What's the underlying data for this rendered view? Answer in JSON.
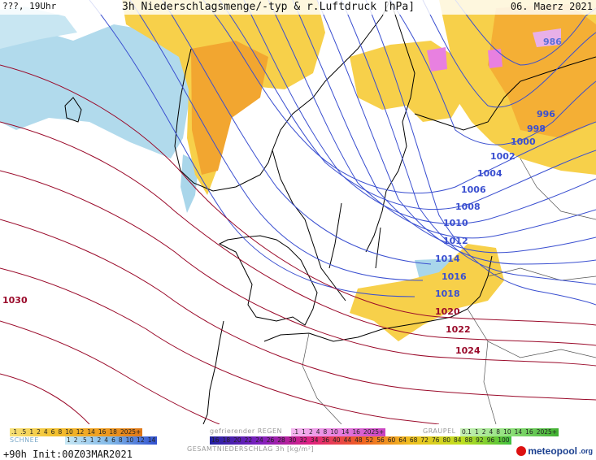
{
  "header": {
    "left": "???, 19Uhr",
    "title": "3h Niederschlagsmenge/-typ & r.Luftdruck [hPa]",
    "date": "06. Maerz 2021"
  },
  "isobars": [
    {
      "label": "986",
      "color": "#5b6fd6"
    },
    {
      "label": "996",
      "color": "#3a4fd0"
    },
    {
      "label": "998",
      "color": "#3a4fd0"
    },
    {
      "label": "1000",
      "color": "#3a4fd0"
    },
    {
      "label": "1002",
      "color": "#3a4fd0"
    },
    {
      "label": "1004",
      "color": "#3a4fd0"
    },
    {
      "label": "1006",
      "color": "#3a4fd0"
    },
    {
      "label": "1008",
      "color": "#3a4fd0"
    },
    {
      "label": "1010",
      "color": "#3a4fd0"
    },
    {
      "label": "1012",
      "color": "#3a4fd0"
    },
    {
      "label": "1014",
      "color": "#3a4fd0"
    },
    {
      "label": "1016",
      "color": "#3a4fd0"
    },
    {
      "label": "1018",
      "color": "#3a4fd0"
    },
    {
      "label": "1020",
      "color": "#9a0a2a"
    },
    {
      "label": "1022",
      "color": "#9a0a2a"
    },
    {
      "label": "1024",
      "color": "#9a0a2a"
    },
    {
      "label": "1030",
      "color": "#9a0a2a"
    }
  ],
  "legend": {
    "rain_scale": [
      ".1",
      ".5",
      "1",
      "2",
      "4",
      "6",
      "8",
      "10",
      "12",
      "14",
      "16",
      "18",
      "2025+"
    ],
    "rain_label": "",
    "frz_label": "gefrierender REGEN",
    "frz_scale": [
      ".1",
      "1",
      "2",
      "4",
      "8",
      "10",
      "14",
      "16",
      "2025+"
    ],
    "graupel_label": "GRAUPEL",
    "graupel_scale": [
      "0.1",
      "1",
      "2",
      "4",
      "8",
      "10",
      "14",
      "16",
      "2025+"
    ],
    "snow_label": "SCHNEE",
    "snow_scale": [
      "1",
      "2",
      ".5",
      "1",
      "2",
      "4",
      "6",
      "8",
      "10",
      "12",
      "14"
    ],
    "total_label": "GESAMTNIEDERSCHLAG 3h [kg/m²]",
    "total_scale": [
      "16",
      "18",
      "20",
      "22",
      "24",
      "26",
      "28",
      "30",
      "32",
      "34",
      "36",
      "40",
      "44",
      "48",
      "52",
      "56",
      "60",
      "64",
      "68",
      "72",
      "76",
      "80",
      "84",
      "88",
      "92",
      "96",
      "100"
    ]
  },
  "init": "+90h  Init:00Z03MAR2021",
  "brand": {
    "name": "meteopool",
    "tld": ".org"
  },
  "colors": {
    "rain": "#f2c12e",
    "snow": "#9fd0e6",
    "frz": "#e880e0",
    "graupel": "#8ee07a",
    "isobar_low": "#3a4fd0",
    "isobar_high": "#9a0a2a"
  }
}
